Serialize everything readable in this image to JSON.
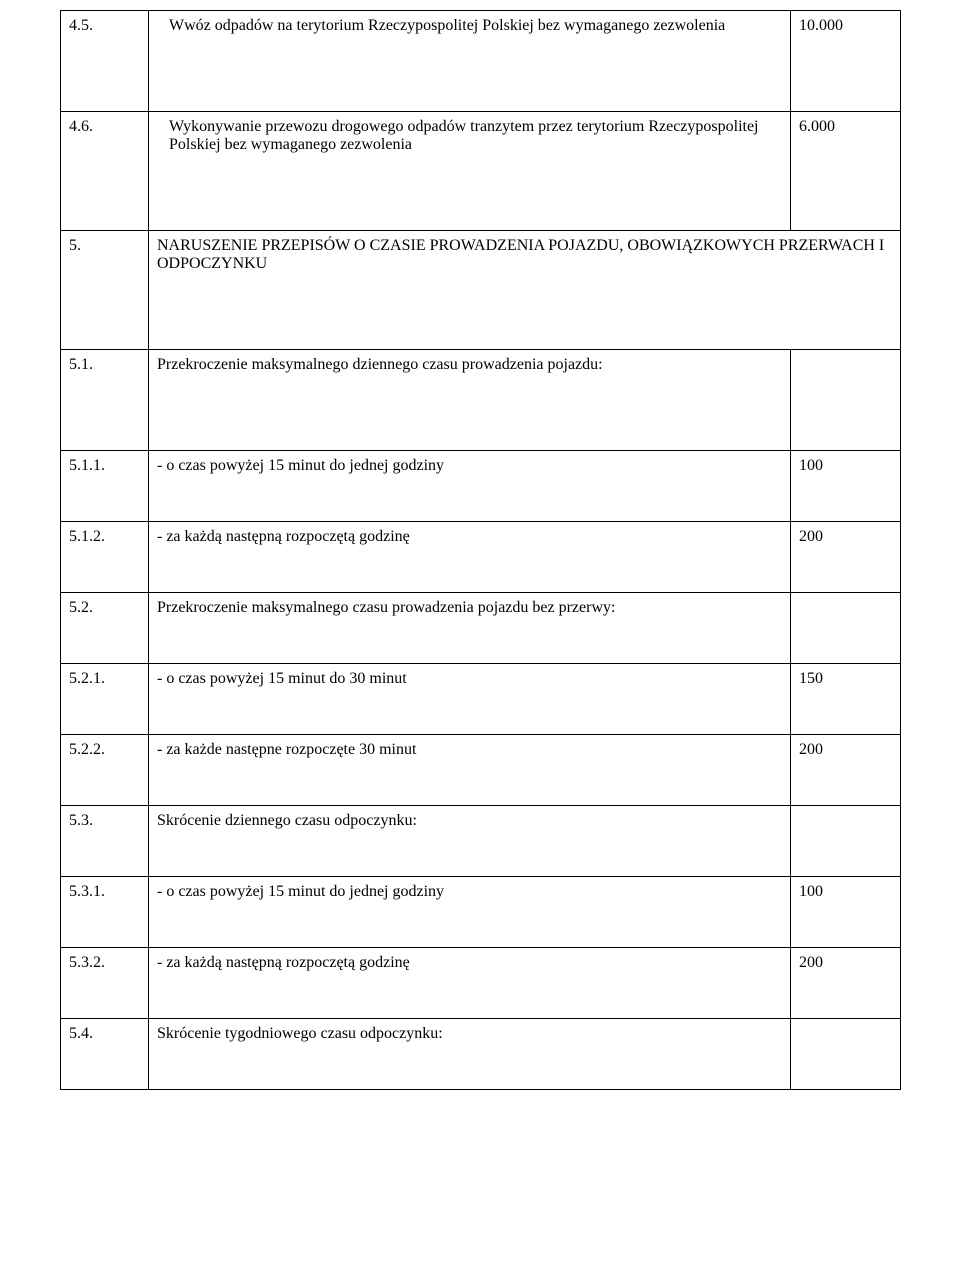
{
  "rows": [
    {
      "num": "4.5.",
      "desc": " Wwóz odpadów na terytorium Rzeczypospolitej Polskiej bez wymaganego zezwolenia",
      "val": "10.000",
      "indent": true,
      "spacer": "spacer"
    },
    {
      "num": "4.6.",
      "desc": " Wykonywanie przewozu drogowego odpadów tranzytem przez terytorium Rzeczypospolitej Polskiej bez wymaganego zezwolenia",
      "val": "6.000",
      "indent": true,
      "spacer": "spacer"
    }
  ],
  "header5": {
    "num": "5.",
    "desc": " NARUSZENIE PRZEPISÓW O CZASIE PROWADZENIA POJAZDU, OBOWIĄZKOWYCH PRZERWACH I ODPOCZYNKU",
    "spacer": "spacer"
  },
  "rows2": [
    {
      "num": "5.1.",
      "desc": "Przekroczenie maksymalnego dziennego czasu prowadzenia pojazdu:",
      "val": "",
      "indent": false,
      "spacer": "spacer"
    },
    {
      "num": "5.1.1.",
      "desc": "- o czas powyżej 15 minut do jednej godziny",
      "val": "100",
      "indent": false,
      "spacer": "spacer-sm"
    },
    {
      "num": "5.1.2.",
      "desc": "- za każdą następną rozpoczętą godzinę",
      "val": "200",
      "indent": false,
      "spacer": "spacer-sm"
    },
    {
      "num": "5.2.",
      "desc": "Przekroczenie maksymalnego czasu prowadzenia pojazdu bez przerwy:",
      "val": "",
      "indent": false,
      "spacer": "spacer-sm"
    },
    {
      "num": "5.2.1.",
      "desc": "- o czas powyżej 15 minut do 30 minut",
      "val": "150",
      "indent": false,
      "spacer": "spacer-sm"
    },
    {
      "num": "5.2.2.",
      "desc": "- za każde następne rozpoczęte 30 minut",
      "val": "200",
      "indent": false,
      "spacer": "spacer-sm"
    },
    {
      "num": "5.3.",
      "desc": "Skrócenie dziennego czasu odpoczynku:",
      "val": "",
      "indent": false,
      "spacer": "spacer-sm"
    },
    {
      "num": "5.3.1.",
      "desc": "- o czas powyżej 15 minut do jednej godziny",
      "val": "100",
      "indent": false,
      "spacer": "spacer-sm"
    },
    {
      "num": "5.3.2.",
      "desc": "- za każdą następną rozpoczętą godzinę",
      "val": "200",
      "indent": false,
      "spacer": "spacer-sm"
    },
    {
      "num": "5.4.",
      "desc": "Skrócenie tygodniowego czasu odpoczynku:",
      "val": "",
      "indent": false,
      "spacer": "spacer-sm"
    }
  ]
}
